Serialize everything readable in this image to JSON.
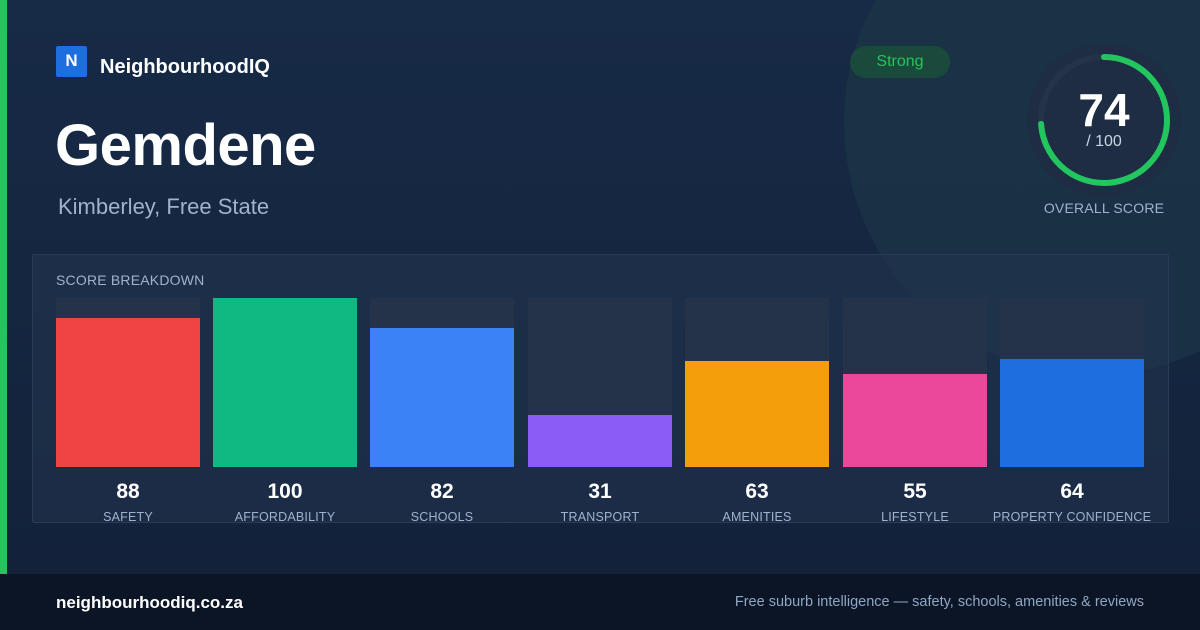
{
  "brand": {
    "logo_letter": "N",
    "name": "NeighbourhoodIQ"
  },
  "suburb": "Gemdene",
  "location": "Kimberley, Free State",
  "badge": "Strong",
  "overall": {
    "score": "74",
    "denominator": "/ 100",
    "label": "OVERALL SCORE",
    "fraction": 0.74
  },
  "colors": {
    "accent": "#22c55e",
    "ring_track": "#24324a"
  },
  "chart_data": {
    "type": "bar",
    "title": "SCORE BREAKDOWN",
    "categories": [
      "SAFETY",
      "AFFORDABILITY",
      "SCHOOLS",
      "TRANSPORT",
      "AMENITIES",
      "LIFESTYLE",
      "PROPERTY CONFIDENCE"
    ],
    "values": [
      88,
      100,
      82,
      31,
      63,
      55,
      64
    ],
    "colors": [
      "#ef4444",
      "#10b981",
      "#3b82f6",
      "#8b5cf6",
      "#f59e0b",
      "#ec4899",
      "#1d6fe0"
    ],
    "ylim": [
      0,
      100
    ],
    "grid": false
  },
  "footer": {
    "domain": "neighbourhoodiq.co.za",
    "tagline": "Free suburb intelligence — safety, schools, amenities & reviews"
  }
}
